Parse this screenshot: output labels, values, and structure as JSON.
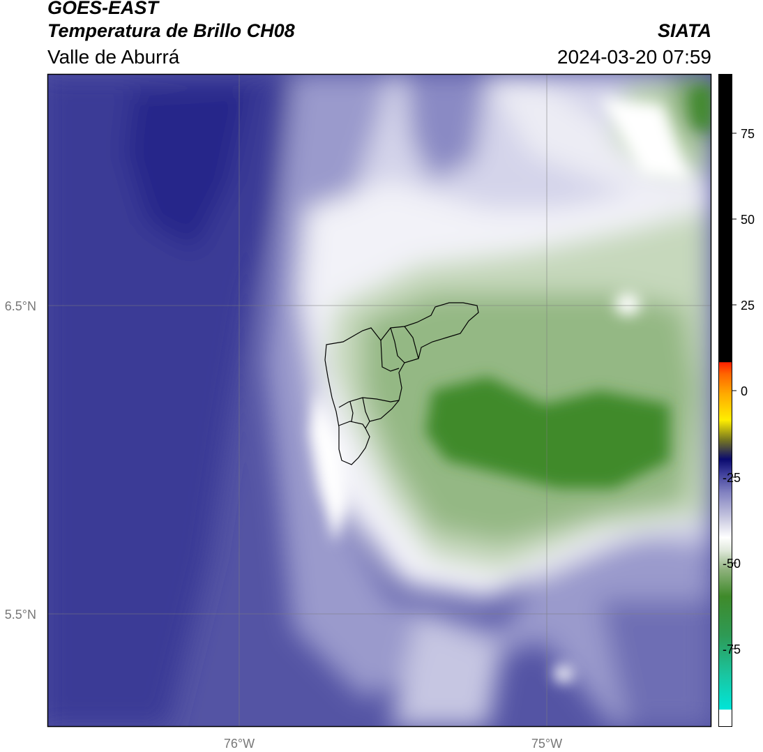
{
  "header": {
    "satellite": "GOES-EAST",
    "product": "Temperatura de Brillo CH08",
    "region": "Valle de Aburrá",
    "organization": "SIATA",
    "timestamp": "2024-03-20 07:59"
  },
  "map": {
    "lat_ticks": [
      "6.5°N",
      "5.5°N"
    ],
    "lon_ticks": [
      "76°W",
      "75°W"
    ]
  },
  "colorbar": {
    "tick_labels": [
      "75",
      "50",
      "25",
      "0",
      "-25",
      "-50",
      "-75"
    ],
    "colors": {
      "black": "#000000",
      "red": "#ff2200",
      "orange": "#ff8800",
      "yellow": "#ffee00",
      "navy": "#0a0a6e",
      "slate_blue": "#5a5aa8",
      "white": "#ffffff",
      "green": "#3f8a2a",
      "cyan": "#00e5d8"
    }
  }
}
